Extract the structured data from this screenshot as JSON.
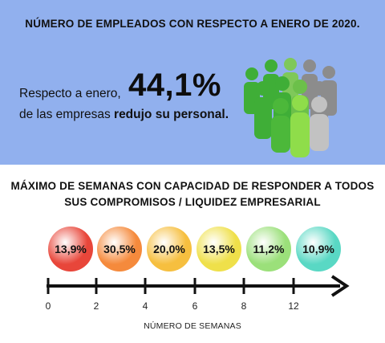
{
  "top": {
    "title": "NÚMERO DE EMPLEADOS CON RESPECTO A ENERO DE 2020.",
    "line1": "Respecto a enero,",
    "big_value": "44,1%",
    "line2_prefix": "de las empresas ",
    "line2_bold": "redujo su personal.",
    "icon": "people-group-icon",
    "colors": {
      "panel": "#91b0ee",
      "green": "#3fae37",
      "light_green": "#8fdd4a",
      "gray": "#8c8c8c"
    }
  },
  "bottom": {
    "title": "MÁXIMO DE SEMANAS CON CAPACIDAD DE RESPONDER A TODOS SUS COMPROMISOS / LIQUIDEZ EMPRESARIAL",
    "circles": [
      {
        "value": "13,9%",
        "color": "#e8463a"
      },
      {
        "value": "30,5%",
        "color": "#f58a3c"
      },
      {
        "value": "20,0%",
        "color": "#f6bf3f"
      },
      {
        "value": "13,5%",
        "color": "#efe04a"
      },
      {
        "value": "11,2%",
        "color": "#9be07a"
      },
      {
        "value": "10,9%",
        "color": "#59d8c4"
      }
    ],
    "ticks": [
      "0",
      "2",
      "4",
      "6",
      "8",
      "12"
    ],
    "axis_label": "NÚMERO DE SEMANAS"
  }
}
